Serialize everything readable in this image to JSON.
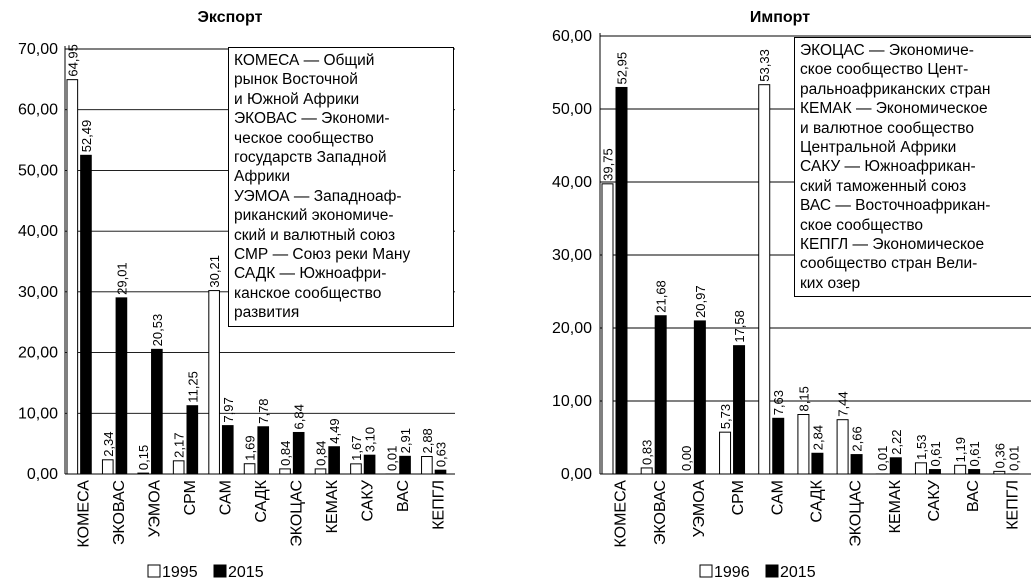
{
  "chart_data": [
    {
      "type": "bar",
      "title": "Экспорт",
      "ylim": [
        0,
        70
      ],
      "yticks": [
        "0,00",
        "10,00",
        "20,00",
        "30,00",
        "40,00",
        "50,00",
        "60,00",
        "70,00"
      ],
      "grid": true,
      "categories": [
        "КОМЕСА",
        "ЭКОВАС",
        "УЭМОА",
        "СРМ",
        "САМ",
        "САДК",
        "ЭКОЦАС",
        "КЕМАК",
        "САКУ",
        "ВАС",
        "КЕПГЛ"
      ],
      "series": [
        {
          "name": "1995",
          "color": "#ffffff",
          "values": [
            64.95,
            2.34,
            0.15,
            2.17,
            30.21,
            1.69,
            0.84,
            0.84,
            1.67,
            0.01,
            2.88
          ],
          "labels": [
            "64,95",
            "2,34",
            "0,15",
            "2,17",
            "30,21",
            "1,69",
            "0,84",
            "0,84",
            "1,67",
            "0,01",
            "2,88"
          ]
        },
        {
          "name": "2015",
          "color": "#000000",
          "values": [
            52.49,
            29.01,
            20.53,
            11.25,
            7.97,
            7.78,
            6.84,
            4.49,
            3.1,
            2.91,
            0.63
          ],
          "labels": [
            "52,49",
            "29,01",
            "20,53",
            "11,25",
            "7,97",
            "7,78",
            "6,84",
            "4,49",
            "3,10",
            "2,91",
            "0,63"
          ]
        }
      ],
      "legend_position": "bottom",
      "notes": [
        "КОМЕСА — Общий",
        "рынок Восточной",
        "и Южной Африки",
        "ЭКОВАС — Экономи-",
        "ческое сообщество",
        "государств Западной",
        "Африки",
        "УЭМОА — Западноаф-",
        "риканский экономиче-",
        "ский и валютный союз",
        "СМР — Союз реки Ману",
        "САДК — Южноафри-",
        "канское сообщество",
        "развития"
      ]
    },
    {
      "type": "bar",
      "title": "Импорт",
      "ylim": [
        0,
        60
      ],
      "yticks": [
        "0,00",
        "10,00",
        "20,00",
        "30,00",
        "40,00",
        "50,00",
        "60,00"
      ],
      "grid": true,
      "categories": [
        "КОМЕСА",
        "ЭКОВАС",
        "УЭМОА",
        "СРМ",
        "САМ",
        "САДК",
        "ЭКОЦАС",
        "КЕМАК",
        "САКУ",
        "ВАС",
        "КЕПГЛ"
      ],
      "series": [
        {
          "name": "1996",
          "color": "#ffffff",
          "values": [
            39.75,
            0.83,
            0.0,
            5.73,
            53.33,
            8.15,
            7.44,
            0.01,
            1.53,
            1.19,
            0.36
          ],
          "labels": [
            "39,75",
            "0,83",
            "0,00",
            "5,73",
            "53,33",
            "8,15",
            "7,44",
            "0,01",
            "1,53",
            "1,19",
            "0,36"
          ]
        },
        {
          "name": "2015",
          "color": "#000000",
          "values": [
            52.95,
            21.68,
            20.97,
            17.58,
            7.63,
            2.84,
            2.66,
            2.22,
            0.61,
            0.61,
            0.01
          ],
          "labels": [
            "52,95",
            "21,68",
            "20,97",
            "17,58",
            "7,63",
            "2,84",
            "2,66",
            "2,22",
            "0,61",
            "0,61",
            "0,01"
          ]
        }
      ],
      "legend_position": "bottom",
      "notes": [
        "ЭКОЦАС — Экономиче-",
        "ское сообщество Цент-",
        "ральноафриканских стран",
        "КЕМАК — Экономическое",
        "и валютное сообщество",
        "Центральной Африки",
        "САКУ — Южноафрикан-",
        "ский таможенный союз",
        "ВАС — Восточноафрикан-",
        "ское сообщество",
        "КЕПГЛ — Экономическое",
        "сообщество стран Вели-",
        "ких озер"
      ]
    }
  ]
}
